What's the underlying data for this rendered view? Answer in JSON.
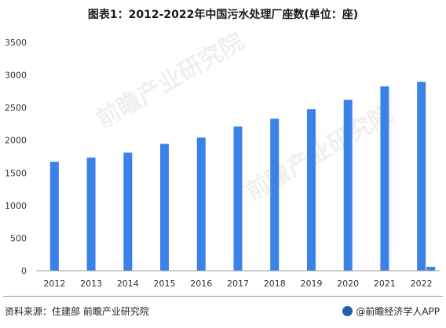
{
  "title": "图表1：2012-2022年中国污水处理厂座数(单位：座)",
  "source": "资料来源：住建部 前瞻产业研究院",
  "credit": "@前瞻经济学人APP",
  "watermark": "前瞻产业研究院",
  "colors": {
    "bar": "#3b82e8",
    "axis": "#9a9a9a",
    "text": "#333333"
  },
  "chart_data": {
    "type": "bar",
    "categories": [
      "2012",
      "2013",
      "2014",
      "2015",
      "2016",
      "2017",
      "2018",
      "2019",
      "2020",
      "2021",
      "2022"
    ],
    "values": [
      1670,
      1735,
      1810,
      1945,
      2040,
      2210,
      2330,
      2475,
      2620,
      2825,
      2895
    ],
    "extra_values": [
      null,
      null,
      null,
      null,
      null,
      null,
      null,
      null,
      null,
      null,
      60
    ],
    "yticks": [
      0,
      500,
      1000,
      1500,
      2000,
      2500,
      3000,
      3500
    ],
    "ylim": [
      0,
      3500
    ],
    "xlabel": "",
    "ylabel": "",
    "grid": false
  }
}
